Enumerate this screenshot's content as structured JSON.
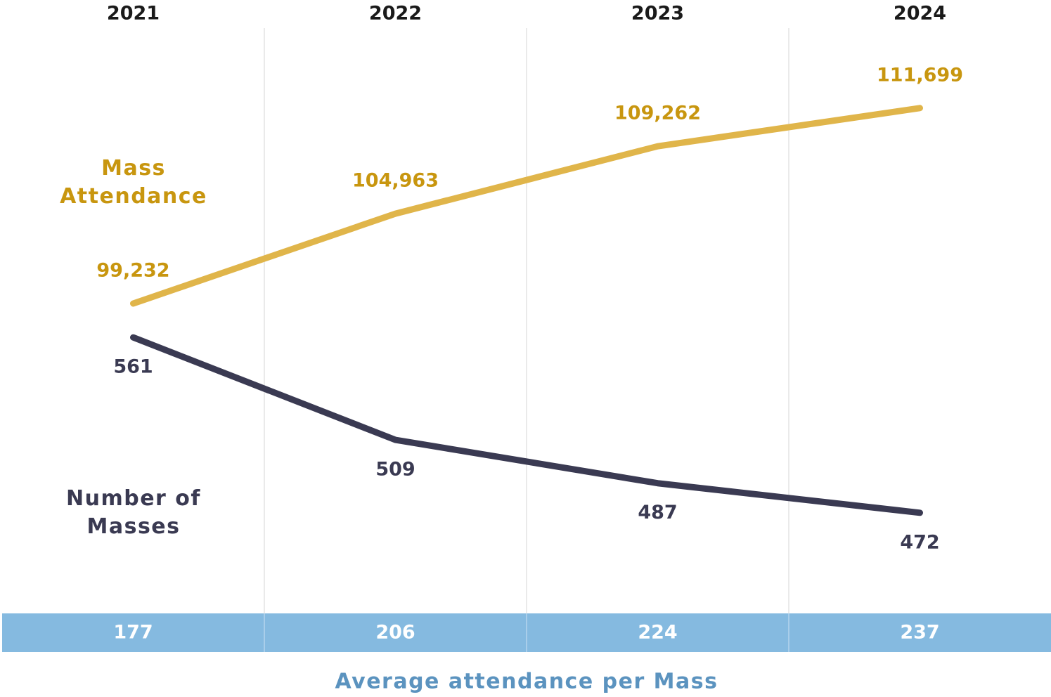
{
  "chart_data": {
    "type": "line",
    "categories": [
      "2021",
      "2022",
      "2023",
      "2024"
    ],
    "series": [
      {
        "name": "Mass Attendance",
        "color": "#e0b54a",
        "label_color": "#c8960f",
        "values": [
          99232,
          104963,
          109262,
          111699
        ],
        "value_labels": [
          "99,232",
          "104,963",
          "109,262",
          "111,699"
        ]
      },
      {
        "name": "Number of Masses",
        "color": "#3a3a52",
        "label_color": "#3a3a52",
        "axis": "y2",
        "values": [
          561,
          509,
          487,
          472
        ]
      }
    ],
    "ylim": [
      79600,
      116800
    ],
    "y2lim": [
      422,
      718
    ],
    "average_row": {
      "label": "Average attendance per Mass",
      "color": "#85bae0",
      "label_color": "#5b93bf",
      "values": [
        177,
        206,
        224,
        237
      ]
    }
  }
}
